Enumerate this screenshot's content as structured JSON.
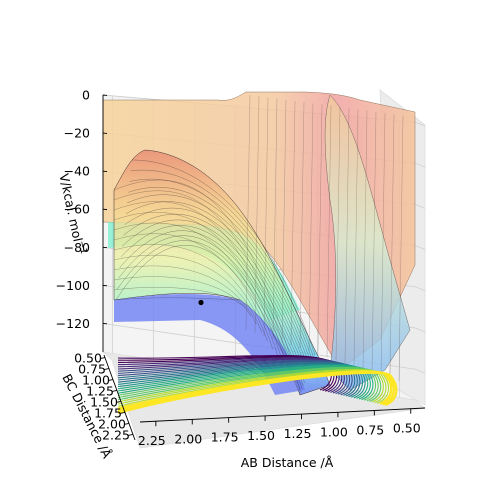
{
  "chart_data": {
    "type": "surface3d",
    "title": "",
    "xlabel": "AB Distance /Å",
    "ylabel": "BC Distance /Å",
    "zlabel": "V/kcal. mol",
    "zlabel_sup": "−1",
    "x_ticks": [
      "2.25",
      "2.00",
      "1.75",
      "1.50",
      "1.25",
      "1.00",
      "0.75",
      "0.50"
    ],
    "y_ticks": [
      "0.50",
      "0.75",
      "1.00",
      "1.25",
      "1.50",
      "1.75",
      "2.00",
      "2.25"
    ],
    "z_ticks": [
      "0",
      "−20",
      "−40",
      "−60",
      "−80",
      "−100",
      "−120"
    ],
    "xlim": [
      0.5,
      2.3
    ],
    "ylim": [
      0.5,
      2.3
    ],
    "zlim": [
      -135,
      0
    ],
    "colormap_surface": "jet",
    "colormap_contour": "viridis",
    "grid": true,
    "marker_point": {
      "x": 2.3,
      "y": 0.74,
      "z": -109
    }
  }
}
